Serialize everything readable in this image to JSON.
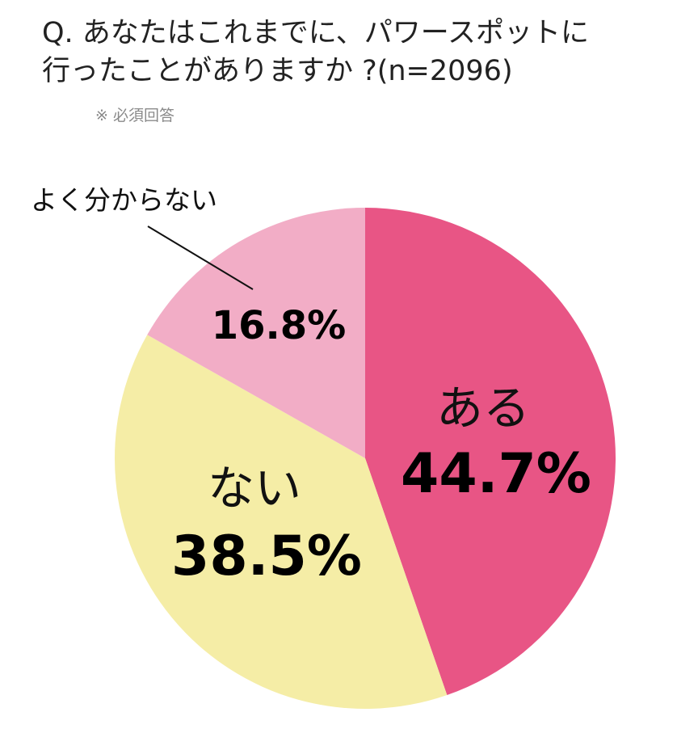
{
  "title": {
    "line1": "Q. あなたはこれまでに、パワースポットに",
    "line2": "行ったことがありますか ?(n=2096)"
  },
  "note": "※ 必須回答",
  "chart_data": {
    "type": "pie",
    "title": "Q. あなたはこれまでに、パワースポットに行ったことがありますか ?(n=2096)",
    "n": 2096,
    "start_angle_deg": 0,
    "direction": "clockwise",
    "slices": [
      {
        "label": "ある",
        "value": 44.7,
        "display": "44.7%",
        "color": "#e85585"
      },
      {
        "label": "ない",
        "value": 38.5,
        "display": "38.5%",
        "color": "#f5eda6"
      },
      {
        "label": "よく分からない",
        "value": 16.8,
        "display": "16.8%",
        "color": "#f2adc6"
      }
    ]
  }
}
